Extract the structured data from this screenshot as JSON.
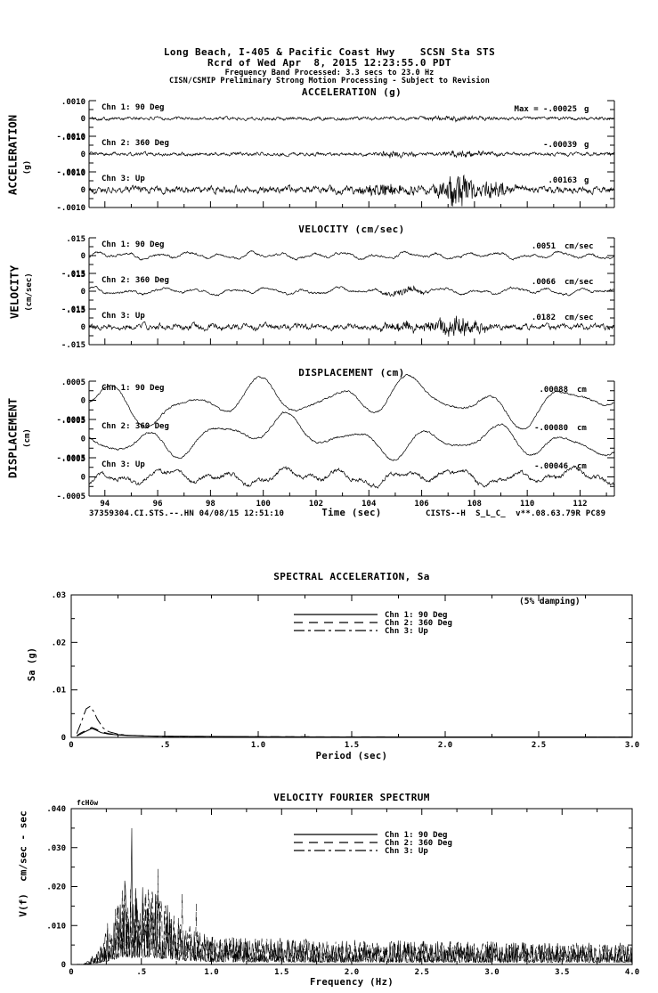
{
  "header": {
    "line1": "Long Beach, I-405 & Pacific Coast Hwy    SCSN Sta STS",
    "line2": "Rcrd of Wed Apr  8, 2015 12:23:55.0 PDT",
    "line3": "Frequency Band Processed: 3.3 secs to 23.0 Hz",
    "line4": "CISN/CSMIP Preliminary Strong Motion Processing - Subject to Revision"
  },
  "footer": {
    "left": "37359304.CI.STS.--.HN 04/08/15 12:51:10",
    "time_axis_label": "Time (sec)",
    "right": "CISTS--H  S_L_C_  v**.08.63.79R PC89"
  },
  "chart_data": [
    {
      "id": "acceleration",
      "type": "line",
      "title": "ACCELERATION (g)",
      "side_label": "ACCELERATION",
      "side_unit": "(g)",
      "x_range": [
        93.4,
        113.3
      ],
      "x_axis_labeled": false,
      "x_tick_labels": [],
      "first_label": 94,
      "y_tick_labels": [
        ".0010",
        "0",
        "-.0010"
      ],
      "channels": [
        {
          "label": "Chn 1: 90 Deg",
          "max_label": "Max =  -.00025",
          "peak_value": -0.00025,
          "unit": "g",
          "synth": {
            "seed": 101,
            "noise": 1.1,
            "bursts": [
              {
                "c": 0.7,
                "w": 0.05,
                "a": 2.2
              }
            ]
          }
        },
        {
          "label": "Chn 2: 360 Deg",
          "max_label": "-.00039",
          "peak_value": -0.00039,
          "unit": "g",
          "synth": {
            "seed": 102,
            "noise": 1.1,
            "bursts": [
              {
                "c": 0.58,
                "w": 0.04,
                "a": 3
              },
              {
                "c": 0.72,
                "w": 0.05,
                "a": 2.6
              }
            ]
          }
        },
        {
          "label": "Chn 3: Up",
          "max_label": ".00163",
          "peak_value": 0.00163,
          "unit": "g",
          "synth": {
            "seed": 103,
            "noise": 2.2,
            "bursts": [
              {
                "c": 0.56,
                "w": 0.07,
                "a": 5
              },
              {
                "c": 0.7,
                "w": 0.035,
                "a": 18
              },
              {
                "c": 0.77,
                "w": 0.03,
                "a": 9
              }
            ]
          }
        }
      ]
    },
    {
      "id": "velocity",
      "type": "line",
      "title": "VELOCITY (cm/sec)",
      "side_label": "VELOCITY",
      "side_unit": "(cm/sec)",
      "x_range": [
        93.4,
        113.3
      ],
      "x_axis_labeled": false,
      "x_tick_labels": [],
      "first_label": 94,
      "y_tick_labels": [
        ".015",
        "0",
        "-.015"
      ],
      "channels": [
        {
          "label": "Chn 1: 90 Deg",
          "max_label": ".0051",
          "peak_value": 0.0051,
          "unit": "cm/sec",
          "synth": {
            "seed": 104,
            "noise": 0.7,
            "waves": [
              [
                17,
                2.2
              ],
              [
                7,
                1.5
              ],
              [
                31,
                0.8
              ]
            ]
          }
        },
        {
          "label": "Chn 2: 360 Deg",
          "max_label": ".0066",
          "peak_value": 0.0066,
          "unit": "cm/sec",
          "synth": {
            "seed": 105,
            "noise": 0.7,
            "waves": [
              [
                15,
                2.2
              ],
              [
                6,
                1.6
              ],
              [
                28,
                0.8
              ]
            ],
            "bursts": [
              {
                "c": 0.6,
                "w": 0.04,
                "a": 3
              }
            ]
          }
        },
        {
          "label": "Chn 3: Up",
          "max_label": ".0182",
          "peak_value": 0.0182,
          "unit": "cm/sec",
          "synth": {
            "seed": 106,
            "noise": 1.8,
            "waves": [
              [
                30,
                1.2
              ]
            ],
            "bursts": [
              {
                "c": 0.7,
                "w": 0.05,
                "a": 10
              },
              {
                "c": 0.6,
                "w": 0.05,
                "a": 4
              }
            ]
          }
        }
      ]
    },
    {
      "id": "displacement",
      "type": "line",
      "title": "DISPLACEMENT (cm)",
      "side_label": "DISPLACEMENT",
      "side_unit": "(cm)",
      "x_range": [
        93.4,
        113.3
      ],
      "x_axis_labeled": true,
      "x_tick_labels": [
        "94",
        "96",
        "98",
        "100",
        "102",
        "104",
        "106",
        "108",
        "110",
        "112"
      ],
      "first_label": 94,
      "y_tick_labels": [
        ".0005",
        "0",
        "-.0005"
      ],
      "channels": [
        {
          "label": "Chn 1: 90 Deg",
          "max_label": ".00088",
          "peak_value": 0.00088,
          "unit": "cm",
          "synth": {
            "seed": 107,
            "noise": 0.6,
            "waves": [
              [
                7,
                14
              ],
              [
                3,
                9
              ],
              [
                11,
                5
              ],
              [
                1.5,
                6
              ]
            ]
          }
        },
        {
          "label": "Chn 2: 360 Deg",
          "max_label": "-.00080",
          "peak_value": -0.0008,
          "unit": "cm",
          "synth": {
            "seed": 108,
            "noise": 0.6,
            "waves": [
              [
                7.5,
                12
              ],
              [
                2.5,
                8
              ],
              [
                12,
                4
              ],
              [
                1.2,
                6
              ]
            ]
          }
        },
        {
          "label": "Chn 3: Up",
          "max_label": "-.00046",
          "peak_value": -0.00046,
          "unit": "cm",
          "synth": {
            "seed": 109,
            "noise": 1.3,
            "waves": [
              [
                9,
                5
              ],
              [
                20,
                3
              ],
              [
                4,
                3.5
              ]
            ]
          }
        }
      ]
    },
    {
      "id": "sa",
      "type": "line",
      "title": "SPECTRAL ACCELERATION, Sa",
      "annotation": "(5% damping)",
      "ylabel": "Sa (g)",
      "xlabel": "Period (sec)",
      "x_range": [
        0,
        3
      ],
      "y_range": [
        0,
        0.03
      ],
      "x_tick_labels": [
        "0",
        ".5",
        "1.0",
        "1.5",
        "2.0",
        "2.5",
        "3.0"
      ],
      "y_tick_labels": [
        ".03",
        ".02",
        ".01",
        "0"
      ],
      "legend": [
        {
          "label": "Chn 1: 90 Deg",
          "style": "solid"
        },
        {
          "label": "Chn 2: 360 Deg",
          "style": "dash"
        },
        {
          "label": "Chn 3: Up",
          "style": "dashdot"
        }
      ],
      "series": [
        {
          "name": "Chn 1: 90 Deg",
          "style": "solid",
          "points": [
            [
              0.03,
              0.0003
            ],
            [
              0.05,
              0.0007
            ],
            [
              0.07,
              0.0011
            ],
            [
              0.09,
              0.0015
            ],
            [
              0.11,
              0.0019
            ],
            [
              0.13,
              0.0016
            ],
            [
              0.16,
              0.001
            ],
            [
              0.2,
              0.0007
            ],
            [
              0.25,
              0.0005
            ],
            [
              0.3,
              0.0004
            ],
            [
              0.4,
              0.0003
            ],
            [
              0.5,
              0.00025
            ],
            [
              0.7,
              0.0002
            ],
            [
              1,
              0.00015
            ],
            [
              1.5,
              0.0001
            ],
            [
              2,
              0.0001
            ],
            [
              2.5,
              9e-05
            ],
            [
              3,
              8e-05
            ]
          ]
        },
        {
          "name": "Chn 2: 360 Deg",
          "style": "dash",
          "points": [
            [
              0.03,
              0.0004
            ],
            [
              0.05,
              0.0009
            ],
            [
              0.07,
              0.0013
            ],
            [
              0.09,
              0.0017
            ],
            [
              0.11,
              0.0021
            ],
            [
              0.13,
              0.0018
            ],
            [
              0.16,
              0.0012
            ],
            [
              0.2,
              0.0008
            ],
            [
              0.25,
              0.0006
            ],
            [
              0.3,
              0.00045
            ],
            [
              0.4,
              0.0003
            ],
            [
              0.5,
              0.00025
            ],
            [
              0.7,
              0.0002
            ],
            [
              1,
              0.00015
            ],
            [
              1.5,
              0.00012
            ],
            [
              2,
              0.0001
            ],
            [
              2.5,
              9e-05
            ],
            [
              3,
              8e-05
            ]
          ]
        },
        {
          "name": "Chn 3: Up",
          "style": "dashdot",
          "points": [
            [
              0.03,
              0.0008
            ],
            [
              0.05,
              0.0028
            ],
            [
              0.07,
              0.005
            ],
            [
              0.08,
              0.006
            ],
            [
              0.1,
              0.0065
            ],
            [
              0.12,
              0.0055
            ],
            [
              0.14,
              0.0038
            ],
            [
              0.17,
              0.002
            ],
            [
              0.2,
              0.0012
            ],
            [
              0.25,
              0.0007
            ],
            [
              0.3,
              0.00045
            ],
            [
              0.4,
              0.0003
            ],
            [
              0.5,
              0.00022
            ],
            [
              0.7,
              0.00016
            ],
            [
              1,
              0.00012
            ],
            [
              1.5,
              0.0001
            ],
            [
              2,
              9e-05
            ],
            [
              3,
              8e-05
            ]
          ]
        }
      ]
    },
    {
      "id": "fourier",
      "type": "line",
      "title": "VELOCITY FOURIER SPECTRUM",
      "corner_label": "fcHöw",
      "ylabel": "V(f)  cm/sec - sec",
      "xlabel": "Frequency (Hz)",
      "x_range": [
        0,
        4
      ],
      "y_range": [
        0,
        0.04
      ],
      "x_tick_labels": [
        "0",
        ".5",
        "1.0",
        "1.5",
        "2.0",
        "2.5",
        "3.0",
        "3.5",
        "4.0"
      ],
      "y_tick_labels": [
        ".040",
        ".030",
        ".020",
        ".010",
        "0"
      ],
      "legend": [
        {
          "label": "Chn 1: 90 Deg",
          "style": "solid"
        },
        {
          "label": "Chn 2: 360 Deg",
          "style": "dash"
        },
        {
          "label": "Chn 3: Up",
          "style": "dashdot"
        }
      ],
      "envelope": [
        [
          0,
          0
        ],
        [
          0.08,
          0.0001
        ],
        [
          0.13,
          0.0008
        ],
        [
          0.18,
          0.002
        ],
        [
          0.25,
          0.005
        ],
        [
          0.32,
          0.009
        ],
        [
          0.38,
          0.013
        ],
        [
          0.44,
          0.011
        ],
        [
          0.52,
          0.012
        ],
        [
          0.6,
          0.011
        ],
        [
          0.68,
          0.009
        ],
        [
          0.78,
          0.0065
        ],
        [
          0.92,
          0.005
        ],
        [
          1.1,
          0.0042
        ],
        [
          1.4,
          0.004
        ],
        [
          1.8,
          0.0036
        ],
        [
          2.2,
          0.0036
        ],
        [
          2.6,
          0.0034
        ],
        [
          3.0,
          0.0034
        ],
        [
          3.4,
          0.0032
        ],
        [
          4.0,
          0.0032
        ]
      ],
      "series": [
        {
          "name": "Chn 1: 90 Deg",
          "style": "solid",
          "seed": 11,
          "peaks": [
            [
              0.43,
              0.035
            ]
          ]
        },
        {
          "name": "Chn 2: 360 Deg",
          "style": "dash",
          "seed": 12,
          "peaks": [
            [
              0.62,
              0.0245
            ]
          ]
        },
        {
          "name": "Chn 3: Up",
          "style": "dashdot",
          "seed": 13,
          "peaks": []
        }
      ]
    }
  ]
}
